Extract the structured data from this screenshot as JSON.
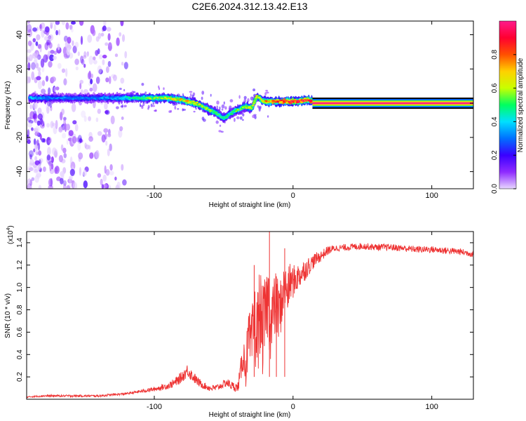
{
  "page_title": "C2E6.2024.312.13.42.E13",
  "chart_data": [
    {
      "type": "heatmap",
      "title": "C2E6.2024.312.13.42.E13",
      "xlabel": "Height of straight line (km)",
      "ylabel": "Frequency (Hz)",
      "xlim": [
        -192,
        130
      ],
      "ylim": [
        -50,
        48
      ],
      "x_ticks": [
        -100,
        0,
        100
      ],
      "x_tick_labels": [
        "-100",
        "0",
        "100"
      ],
      "y_ticks": [
        -40,
        -20,
        0,
        20,
        40
      ],
      "y_tick_labels": [
        "-40",
        "-20",
        "0",
        "20",
        "40"
      ],
      "colorbar": {
        "label": "Normalized spectral amplitude",
        "range": [
          0,
          1
        ],
        "ticks": [
          0.0,
          0.2,
          0.4,
          0.6,
          0.8
        ],
        "tick_labels": [
          "0.0",
          "0.2",
          "0.4",
          "0.6",
          "0.8"
        ],
        "colors": [
          "#e8d8ff",
          "#8f2bff",
          "#3a00ff",
          "#0070ff",
          "#00e0ff",
          "#00ff60",
          "#c8ff00",
          "#ffd000",
          "#ff5000",
          "#ff0030",
          "#ff1a8c"
        ]
      },
      "ridge": {
        "x": [
          -190,
          -175,
          -160,
          -145,
          -130,
          -120,
          -110,
          -100,
          -90,
          -80,
          -70,
          -60,
          -55,
          -50,
          -45,
          -40,
          -35,
          -30,
          -26,
          -24,
          -22,
          -20,
          -15,
          -10,
          -5,
          0,
          5,
          10,
          14
        ],
        "y": [
          3,
          3,
          3,
          3,
          3,
          3,
          3,
          3,
          3,
          2,
          0,
          -4,
          -6,
          -9,
          -6,
          -4,
          -2,
          -3,
          4,
          3,
          1,
          1,
          1,
          1,
          1,
          1,
          1,
          2,
          1
        ],
        "amplitude": [
          0.35,
          0.3,
          0.3,
          0.3,
          0.35,
          0.4,
          0.5,
          0.55,
          0.6,
          0.65,
          0.62,
          0.55,
          0.5,
          0.45,
          0.45,
          0.5,
          0.55,
          0.6,
          0.6,
          0.6,
          0.65,
          0.7,
          0.75,
          0.8,
          0.8,
          0.85,
          0.85,
          0.85,
          0.9
        ]
      },
      "noise_region_x": [
        -192,
        -120
      ],
      "constant_band": {
        "x": [
          14,
          130
        ],
        "y": 0,
        "amplitude": 1.0
      }
    },
    {
      "type": "line",
      "xlabel": "Height of straight line (km)",
      "ylabel": "SNR (10 * v/v)",
      "y_scale_label": "(x10",
      "y_scale_exp": "4",
      "xlim": [
        -192,
        130
      ],
      "ylim": [
        0,
        1.5
      ],
      "x_ticks": [
        -100,
        0,
        100
      ],
      "x_tick_labels": [
        "-100",
        "0",
        "100"
      ],
      "y_ticks": [
        0.2,
        0.4,
        0.6,
        0.8,
        1.0,
        1.2,
        1.4
      ],
      "y_tick_labels": [
        "0.2",
        "0.4",
        "0.6",
        "0.8",
        "1.0",
        "1.2",
        "1.4"
      ],
      "color": "#ee3333",
      "series": [
        {
          "name": "SNR",
          "x": [
            -192,
            -180,
            -160,
            -140,
            -130,
            -120,
            -110,
            -100,
            -90,
            -85,
            -80,
            -76,
            -72,
            -68,
            -64,
            -60,
            -56,
            -52,
            -48,
            -44,
            -40,
            -38,
            -36,
            -34,
            -32,
            -30,
            -28,
            -26,
            -24,
            -22,
            -20,
            -18,
            -16,
            -14,
            -12,
            -10,
            -8,
            -6,
            -4,
            -2,
            0,
            4,
            8,
            12,
            16,
            20,
            25,
            30,
            40,
            50,
            60,
            70,
            80,
            90,
            100,
            110,
            120,
            130
          ],
          "y": [
            0.02,
            0.03,
            0.03,
            0.03,
            0.04,
            0.05,
            0.07,
            0.09,
            0.12,
            0.15,
            0.2,
            0.26,
            0.2,
            0.15,
            0.12,
            0.1,
            0.1,
            0.12,
            0.15,
            0.12,
            0.1,
            0.22,
            0.4,
            0.3,
            0.55,
            0.45,
            0.7,
            0.55,
            0.8,
            0.6,
            0.75,
            0.9,
            0.65,
            0.8,
            0.85,
            0.75,
            0.9,
            1.0,
            0.95,
            1.05,
            1.05,
            1.1,
            1.15,
            1.2,
            1.25,
            1.28,
            1.33,
            1.35,
            1.36,
            1.37,
            1.36,
            1.36,
            1.35,
            1.34,
            1.34,
            1.33,
            1.32,
            1.3
          ],
          "noise": [
            0.005,
            0.01,
            0.01,
            0.01,
            0.01,
            0.01,
            0.015,
            0.02,
            0.03,
            0.04,
            0.05,
            0.06,
            0.05,
            0.04,
            0.03,
            0.03,
            0.03,
            0.03,
            0.04,
            0.04,
            0.04,
            0.1,
            0.15,
            0.2,
            0.25,
            0.3,
            0.35,
            0.4,
            0.4,
            0.4,
            0.35,
            0.35,
            0.35,
            0.3,
            0.3,
            0.28,
            0.25,
            0.22,
            0.2,
            0.18,
            0.15,
            0.12,
            0.1,
            0.08,
            0.06,
            0.05,
            0.04,
            0.03,
            0.03,
            0.03,
            0.03,
            0.03,
            0.03,
            0.03,
            0.03,
            0.03,
            0.03,
            0.03
          ]
        }
      ],
      "spikes": [
        {
          "x": -17,
          "y": 1.5
        },
        {
          "x": -28,
          "y": 1.2
        },
        {
          "x": -12,
          "y": 1.1
        },
        {
          "x": -6,
          "y": 1.35
        }
      ]
    }
  ]
}
